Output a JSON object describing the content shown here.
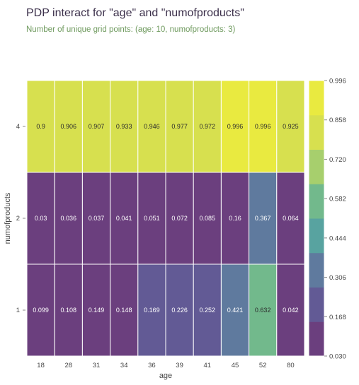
{
  "title": "PDP interact for \"age\" and \"numofproducts\"",
  "subtitle": "Number of unique grid points: (age: 10, numofproducts: 3)",
  "chart_data": {
    "type": "heatmap",
    "xlabel": "age",
    "ylabel": "numofproducts",
    "x": [
      "18",
      "28",
      "31",
      "34",
      "36",
      "39",
      "41",
      "45",
      "52",
      "80"
    ],
    "y": [
      "4",
      "2",
      "1"
    ],
    "values": [
      [
        0.9,
        0.906,
        0.907,
        0.933,
        0.946,
        0.977,
        0.972,
        0.996,
        0.996,
        0.925
      ],
      [
        0.03,
        0.036,
        0.037,
        0.041,
        0.051,
        0.072,
        0.085,
        0.16,
        0.367,
        0.064
      ],
      [
        0.099,
        0.108,
        0.149,
        0.148,
        0.169,
        0.226,
        0.252,
        0.421,
        0.632,
        0.042
      ]
    ],
    "labels": [
      [
        "0.9",
        "0.906",
        "0.907",
        "0.933",
        "0.946",
        "0.977",
        "0.972",
        "0.996",
        "0.996",
        "0.925"
      ],
      [
        "0.03",
        "0.036",
        "0.037",
        "0.041",
        "0.051",
        "0.072",
        "0.085",
        "0.16",
        "0.367",
        "0.064"
      ],
      [
        "0.099",
        "0.108",
        "0.149",
        "0.148",
        "0.169",
        "0.226",
        "0.252",
        "0.421",
        "0.632",
        "0.042"
      ]
    ],
    "colorbar": {
      "min": 0.03,
      "max": 0.996,
      "ticks": [
        "0.996",
        "0.858",
        "0.720",
        "0.582",
        "0.444",
        "0.306",
        "0.168",
        "0.030"
      ],
      "colors": [
        "#6b3f7e",
        "#625a95",
        "#5f7a9e",
        "#58a3a0",
        "#72b98c",
        "#a7cf6d",
        "#d7e04f",
        "#e9ea40"
      ]
    },
    "colormap": "viridis (discretized, 7 levels)"
  }
}
